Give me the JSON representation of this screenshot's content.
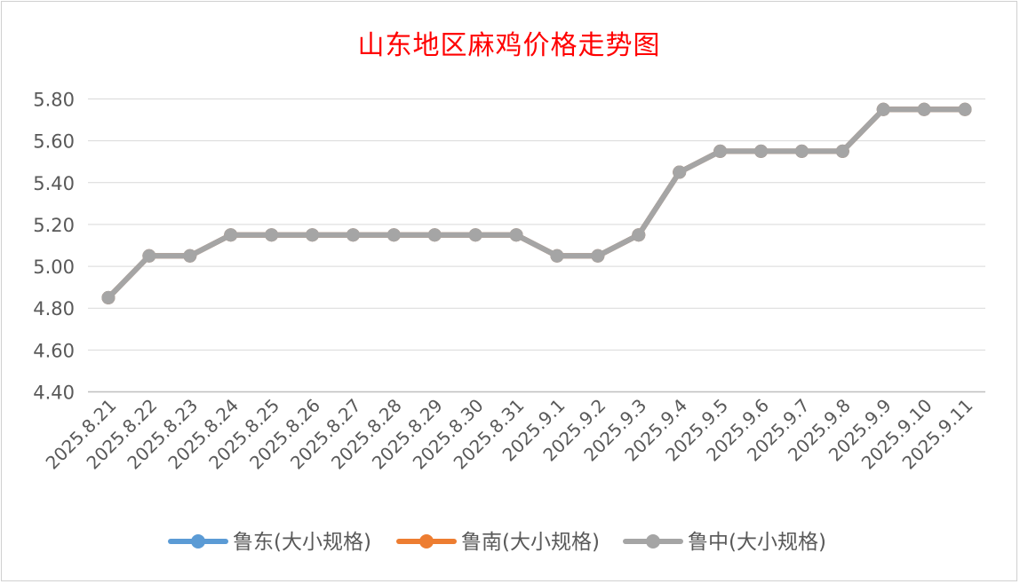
{
  "chart_data": {
    "type": "line",
    "title": "山东地区麻鸡价格走势图",
    "categories": [
      "2025.8.21",
      "2025.8.22",
      "2025.8.23",
      "2025.8.24",
      "2025.8.25",
      "2025.8.26",
      "2025.8.27",
      "2025.8.28",
      "2025.8.29",
      "2025.8.30",
      "2025.8.31",
      "2025.9.1",
      "2025.9.2",
      "2025.9.3",
      "2025.9.4",
      "2025.9.5",
      "2025.9.6",
      "2025.9.7",
      "2025.9.8",
      "2025.9.9",
      "2025.9.10",
      "2025.9.11"
    ],
    "yticks": [
      "4.40",
      "4.60",
      "4.80",
      "5.00",
      "5.20",
      "5.40",
      "5.60",
      "5.80"
    ],
    "ylim": [
      4.4,
      5.8
    ],
    "grid": true,
    "legend_position": "bottom",
    "series": [
      {
        "name": "鲁东(大小规格)",
        "color": "#5b9bd5",
        "values": [
          4.85,
          5.05,
          5.05,
          5.15,
          5.15,
          5.15,
          5.15,
          5.15,
          5.15,
          5.15,
          5.15,
          5.05,
          5.05,
          5.15,
          5.45,
          5.55,
          5.55,
          5.55,
          5.55,
          5.75,
          5.75,
          5.75
        ]
      },
      {
        "name": "鲁南(大小规格)",
        "color": "#ed7d31",
        "values": [
          4.85,
          5.05,
          5.05,
          5.15,
          5.15,
          5.15,
          5.15,
          5.15,
          5.15,
          5.15,
          5.15,
          5.05,
          5.05,
          5.15,
          5.45,
          5.55,
          5.55,
          5.55,
          5.55,
          5.75,
          5.75,
          5.75
        ]
      },
      {
        "name": "鲁中(大小规格)",
        "color": "#a5a5a5",
        "values": [
          4.85,
          5.05,
          5.05,
          5.15,
          5.15,
          5.15,
          5.15,
          5.15,
          5.15,
          5.15,
          5.15,
          5.05,
          5.05,
          5.15,
          5.45,
          5.55,
          5.55,
          5.55,
          5.55,
          5.75,
          5.75,
          5.75
        ]
      }
    ]
  }
}
